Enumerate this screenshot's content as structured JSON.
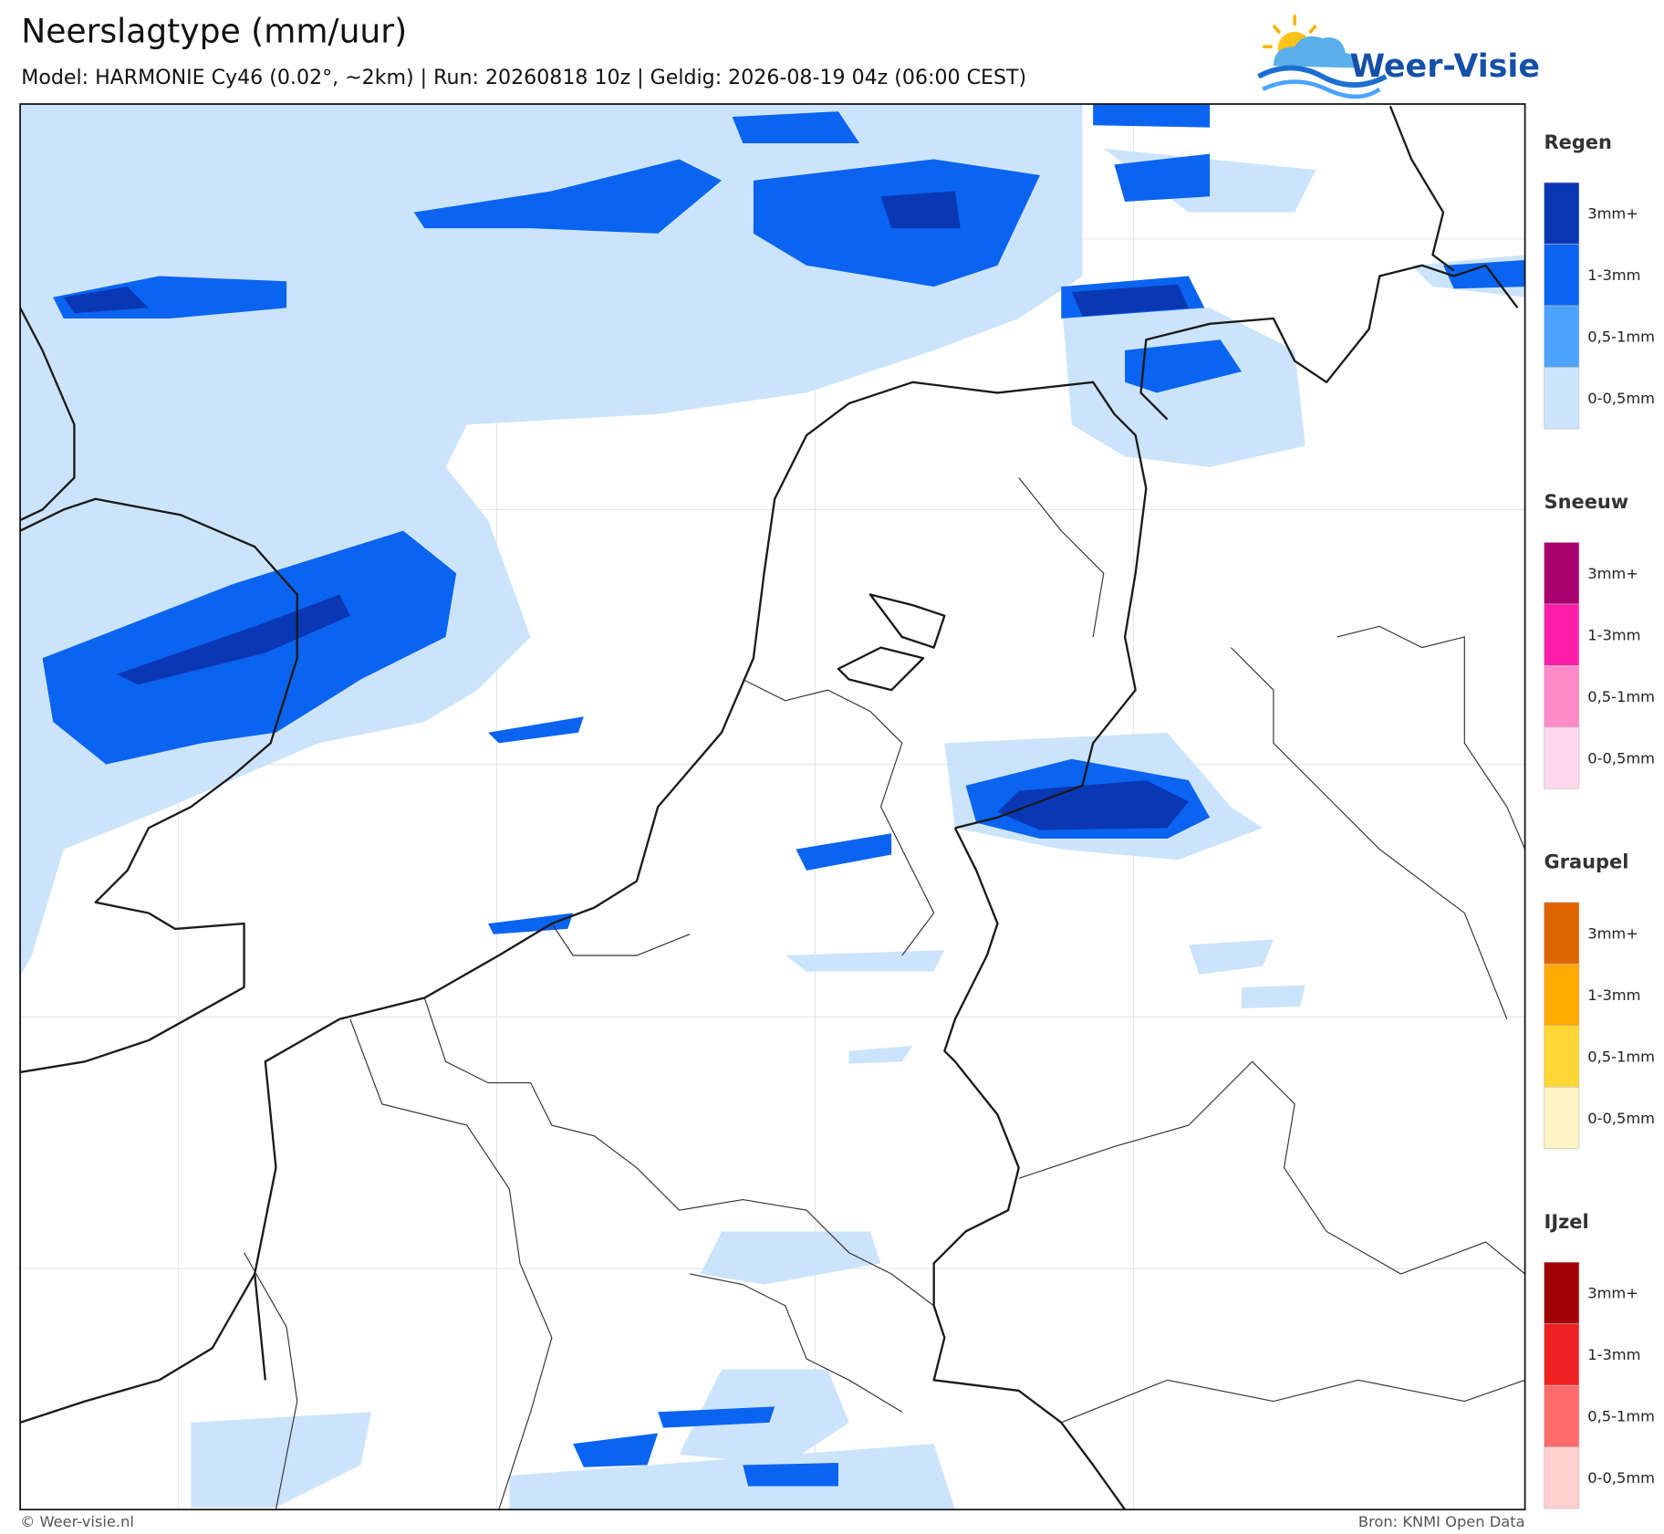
{
  "header": {
    "title": "Neerslagtype (mm/uur)",
    "subtitle": "Model: HARMONIE Cy46 (0.02°, ~2km)  |  Run: 20260818 10z  |  Geldig: 2026-08-19 04z (06:00 CEST)"
  },
  "logo": {
    "text": "Weer-Visie"
  },
  "legend": {
    "sections": [
      {
        "title": "Regen",
        "items": [
          {
            "label": "3mm+",
            "color": "#0a37b4"
          },
          {
            "label": "1-3mm",
            "color": "#0a64f0"
          },
          {
            "label": "0,5-1mm",
            "color": "#4da3ff"
          },
          {
            "label": "0-0,5mm",
            "color": "#cce4fb"
          }
        ]
      },
      {
        "title": "Sneeuw",
        "items": [
          {
            "label": "3mm+",
            "color": "#a8006e"
          },
          {
            "label": "1-3mm",
            "color": "#ff1fa8"
          },
          {
            "label": "0,5-1mm",
            "color": "#ff8cc8"
          },
          {
            "label": "0-0,5mm",
            "color": "#ffd8ec"
          }
        ]
      },
      {
        "title": "Graupel",
        "items": [
          {
            "label": "3mm+",
            "color": "#de6400"
          },
          {
            "label": "1-3mm",
            "color": "#ffaa00"
          },
          {
            "label": "0,5-1mm",
            "color": "#ffd633"
          },
          {
            "label": "0-0,5mm",
            "color": "#fff2c4"
          }
        ]
      },
      {
        "title": "IJzel",
        "items": [
          {
            "label": "3mm+",
            "color": "#a00000"
          },
          {
            "label": "1-3mm",
            "color": "#ee2222"
          },
          {
            "label": "0,5-1mm",
            "color": "#ff6b6b"
          },
          {
            "label": "0-0,5mm",
            "color": "#ffd0d0"
          }
        ]
      }
    ]
  },
  "footer": {
    "left": "© Weer-visie.nl",
    "right": "Bron: KNMI Open Data"
  }
}
